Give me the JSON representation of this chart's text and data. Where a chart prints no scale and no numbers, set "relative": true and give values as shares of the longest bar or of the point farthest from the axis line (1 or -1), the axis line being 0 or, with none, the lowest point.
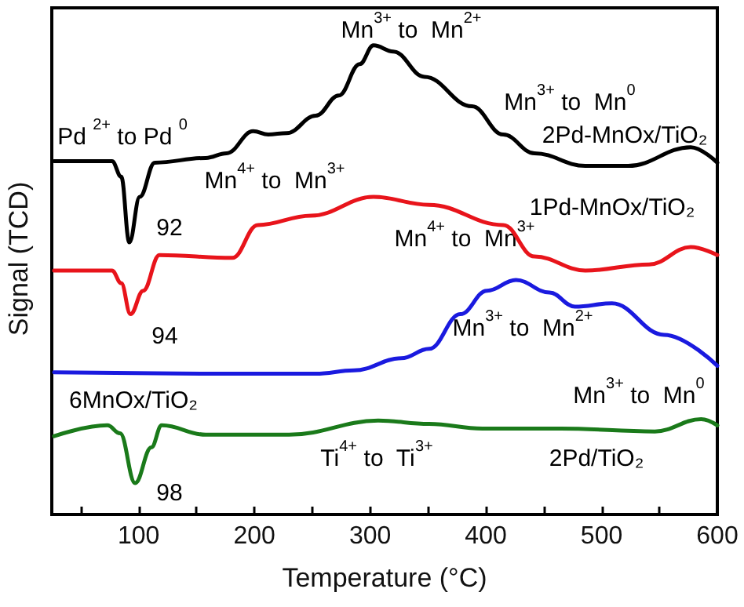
{
  "chart_data": {
    "type": "line",
    "xlabel": "Temperature (°C)",
    "ylabel": "Signal (TCD)",
    "relative": true,
    "legend": false,
    "grid": false,
    "marker": "none",
    "line_style": "solid",
    "xlim": [
      25,
      600
    ],
    "xticks": [
      {
        "value": 50,
        "label": null
      },
      100,
      {
        "value": 150,
        "label": null
      },
      200,
      {
        "value": 250,
        "label": null
      },
      300,
      {
        "value": 350,
        "label": null
      },
      400,
      {
        "value": 450,
        "label": null
      },
      500,
      {
        "value": 550,
        "label": null
      },
      600
    ],
    "series": [
      {
        "name": "2Pd-MnOx/TiO₂",
        "color": "#000000",
        "x": [
          27,
          77,
          85,
          92,
          101,
          114,
          158,
          176,
          199,
          212,
          228,
          253,
          273,
          291,
          303,
          320,
          347,
          388,
          415,
          442,
          486,
          523,
          577,
          600
        ],
        "values": [
          0.753,
          0.753,
          0.72,
          0.58,
          0.677,
          0.75,
          0.76,
          0.77,
          0.817,
          0.81,
          0.813,
          0.85,
          0.893,
          0.96,
          1.0,
          0.987,
          0.933,
          0.87,
          0.81,
          0.77,
          0.743,
          0.743,
          0.783,
          0.75
        ]
      },
      {
        "name": "1Pd-MnOx/TiO₂",
        "color": "#e8141b",
        "x": [
          27,
          77,
          85,
          93,
          104,
          118,
          181,
          203,
          249,
          303,
          351,
          415,
          442,
          486,
          541,
          577,
          600
        ],
        "values": [
          0.52,
          0.52,
          0.493,
          0.427,
          0.477,
          0.553,
          0.547,
          0.617,
          0.637,
          0.677,
          0.66,
          0.617,
          0.55,
          0.52,
          0.533,
          0.57,
          0.553
        ]
      },
      {
        "name": "6MnOx/TiO₂",
        "color": "#1a1adf",
        "x": [
          27,
          185,
          253,
          286,
          327,
          351,
          378,
          401,
          426,
          455,
          477,
          509,
          554,
          600
        ],
        "values": [
          0.303,
          0.3,
          0.3,
          0.307,
          0.333,
          0.353,
          0.427,
          0.477,
          0.5,
          0.473,
          0.443,
          0.45,
          0.383,
          0.317
        ]
      },
      {
        "name": "2Pd/TiO₂",
        "color": "#1a7a1a",
        "x": [
          27,
          73,
          84,
          97,
          111,
          120,
          158,
          230,
          307,
          351,
          397,
          465,
          546,
          586,
          600
        ],
        "values": [
          0.167,
          0.19,
          0.173,
          0.067,
          0.143,
          0.19,
          0.17,
          0.17,
          0.2,
          0.193,
          0.183,
          0.183,
          0.177,
          0.203,
          0.19
        ]
      }
    ],
    "annotations": [
      "Pd $^{2+}$ to Pd $^{0}$",
      "92",
      "Mn$^{4+}$ to  Mn$^{3+}$",
      "Mn$^{3+}$ to  Mn$^{2+}$",
      "Mn$^{3+}$ to  Mn$^{0}$",
      "94",
      "Mn$^{4+}$ to  Mn$^{3+}$",
      "Mn$^{3+}$ to  Mn$^{2+}$",
      "Mn$^{3+}$ to  Mn$^{0}$",
      "98",
      "Ti$^{4+}$ to  Ti$^{3+}$"
    ]
  }
}
